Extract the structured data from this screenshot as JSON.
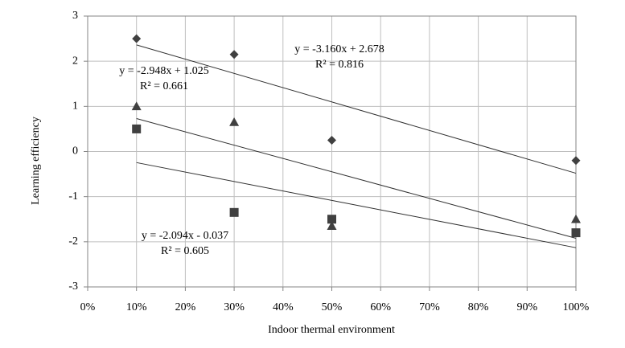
{
  "chart_data": {
    "type": "scatter",
    "x_label": "Indoor thermal environment",
    "y_label": "Learning efficiency",
    "xlim": [
      0,
      1
    ],
    "xticks": [
      {
        "value": 0,
        "label": "0%"
      },
      {
        "value": 0.1,
        "label": "10%"
      },
      {
        "value": 0.2,
        "label": "20%"
      },
      {
        "value": 0.3,
        "label": "30%"
      },
      {
        "value": 0.4,
        "label": "40%"
      },
      {
        "value": 0.5,
        "label": "50%"
      },
      {
        "value": 0.6,
        "label": "60%"
      },
      {
        "value": 0.7,
        "label": "70%"
      },
      {
        "value": 0.8,
        "label": "80%"
      },
      {
        "value": 0.9,
        "label": "90%"
      },
      {
        "value": 1,
        "label": "100%"
      }
    ],
    "ylim": [
      -3,
      3
    ],
    "yticks": [
      3,
      2,
      1,
      0,
      -1,
      -2,
      -3
    ],
    "grid": true,
    "series": [
      {
        "marker": "diamond",
        "color": "#404040",
        "x": [
          0.1,
          0.3,
          0.5,
          1
        ],
        "values": [
          2.5,
          2.15,
          0.25,
          -0.2
        ]
      },
      {
        "marker": "triangle",
        "color": "#404040",
        "x": [
          0.1,
          0.3,
          0.5,
          1
        ],
        "values": [
          1.0,
          0.65,
          -1.65,
          -1.5
        ]
      },
      {
        "marker": "square",
        "color": "#404040",
        "x": [
          0.1,
          0.3,
          0.5,
          1
        ],
        "values": [
          0.5,
          -1.35,
          -1.5,
          -1.8
        ]
      }
    ],
    "trendlines": [
      {
        "color": "#303030",
        "x": [
          0.1,
          1
        ],
        "values": [
          2.362,
          -0.482
        ]
      },
      {
        "color": "#303030",
        "x": [
          0.1,
          1
        ],
        "values": [
          0.73,
          -1.923
        ]
      },
      {
        "color": "#303030",
        "x": [
          0.1,
          1
        ],
        "values": [
          -0.246,
          -2.131
        ]
      }
    ],
    "annotations": [
      [
        "y = -3.160x + 2.678",
        "R² = 0.816"
      ],
      [
        "y = -2.948x + 1.025",
        "R² = 0.661"
      ],
      [
        "y = -2.094x - 0.037",
        "R² = 0.605"
      ]
    ]
  }
}
